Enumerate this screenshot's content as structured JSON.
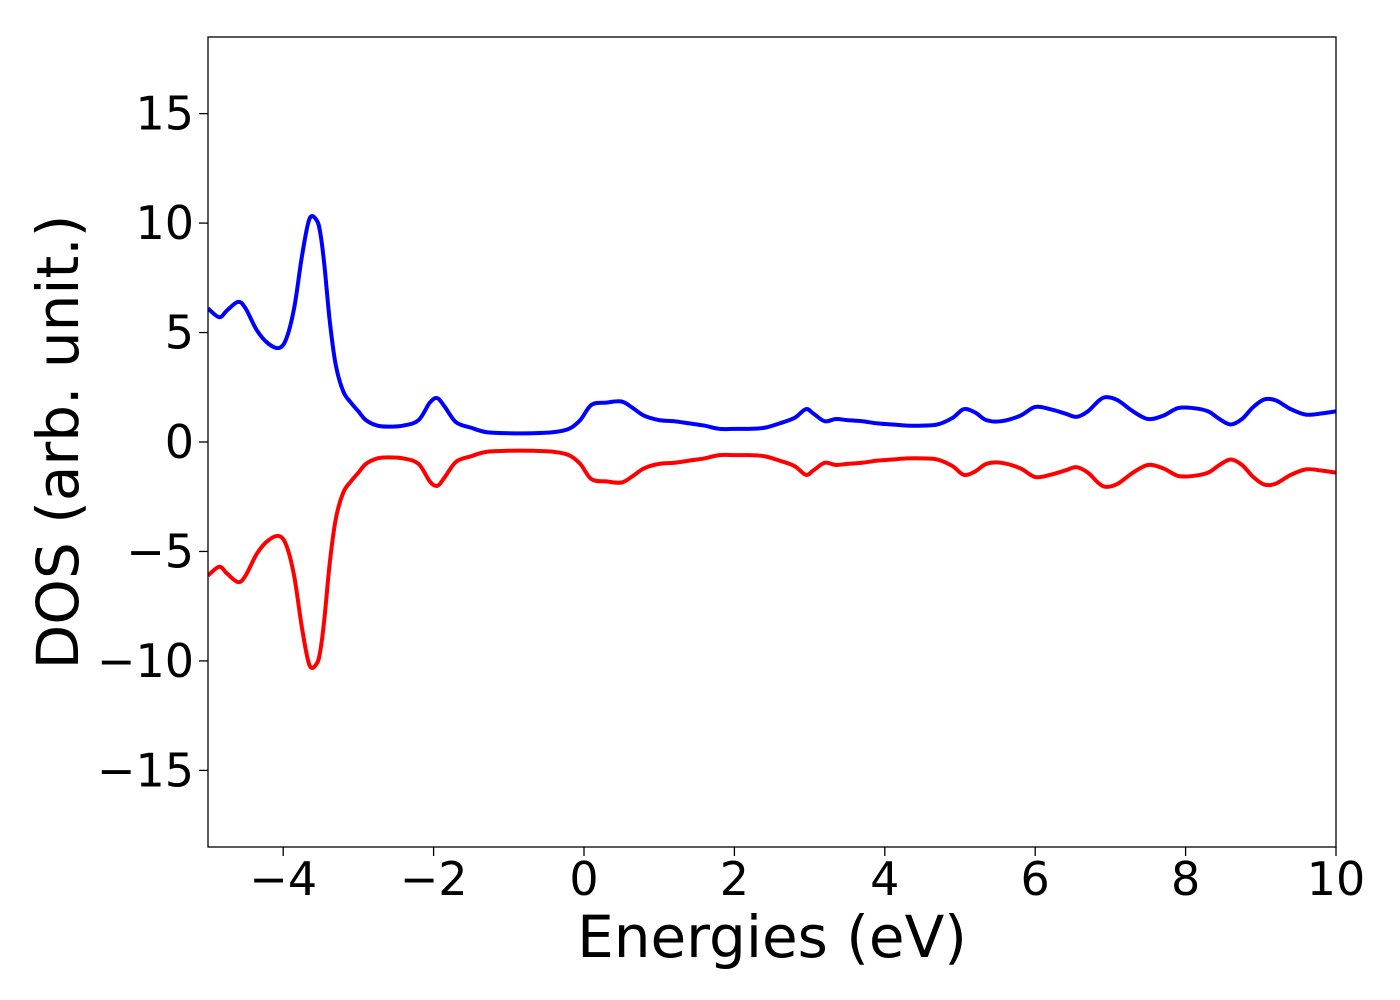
{
  "chart_data": {
    "type": "line",
    "title": "",
    "xlabel": "Energies (eV)",
    "ylabel": "DOS (arb. unit.)",
    "xlim": [
      -5,
      10
    ],
    "ylim": [
      -18.5,
      18.5
    ],
    "xticks": [
      -4,
      -2,
      0,
      2,
      4,
      6,
      8,
      10
    ],
    "yticks": [
      -15,
      -10,
      -5,
      0,
      5,
      10,
      15
    ],
    "xtick_labels": [
      "−4",
      "−2",
      "0",
      "2",
      "4",
      "6",
      "8",
      "10"
    ],
    "ytick_labels": [
      "−15",
      "−10",
      "−5",
      "0",
      "5",
      "10",
      "15"
    ],
    "grid": false,
    "legend": "none",
    "series": [
      {
        "color": "#0000ff",
        "x": [
          -5.0,
          -4.85,
          -4.75,
          -4.6,
          -4.5,
          -4.35,
          -4.2,
          -4.05,
          -3.95,
          -3.85,
          -3.75,
          -3.65,
          -3.55,
          -3.5,
          -3.45,
          -3.38,
          -3.3,
          -3.2,
          -3.1,
          -3.0,
          -2.9,
          -2.75,
          -2.6,
          -2.4,
          -2.2,
          -2.05,
          -1.95,
          -1.85,
          -1.7,
          -1.5,
          -1.3,
          -1.0,
          -0.7,
          -0.4,
          -0.2,
          -0.05,
          0.1,
          0.3,
          0.5,
          0.65,
          0.8,
          1.0,
          1.2,
          1.4,
          1.6,
          1.8,
          2.0,
          2.2,
          2.4,
          2.6,
          2.8,
          2.95,
          3.05,
          3.2,
          3.35,
          3.5,
          3.7,
          3.9,
          4.1,
          4.3,
          4.5,
          4.7,
          4.9,
          5.05,
          5.2,
          5.35,
          5.55,
          5.8,
          6.0,
          6.2,
          6.4,
          6.55,
          6.7,
          6.85,
          6.95,
          7.1,
          7.3,
          7.5,
          7.7,
          7.9,
          8.1,
          8.3,
          8.45,
          8.6,
          8.75,
          8.9,
          9.05,
          9.2,
          9.4,
          9.6,
          9.8,
          10.0
        ],
        "values": [
          6.1,
          5.7,
          6.0,
          6.4,
          6.1,
          5.1,
          4.5,
          4.3,
          4.8,
          6.2,
          8.5,
          10.2,
          10.1,
          9.4,
          8.0,
          5.5,
          3.5,
          2.3,
          1.8,
          1.4,
          1.0,
          0.75,
          0.7,
          0.75,
          1.0,
          1.8,
          2.0,
          1.6,
          0.9,
          0.65,
          0.45,
          0.4,
          0.4,
          0.45,
          0.6,
          1.0,
          1.7,
          1.8,
          1.85,
          1.55,
          1.2,
          1.0,
          0.95,
          0.85,
          0.75,
          0.6,
          0.6,
          0.6,
          0.65,
          0.85,
          1.1,
          1.5,
          1.3,
          0.95,
          1.05,
          1.0,
          0.95,
          0.85,
          0.8,
          0.75,
          0.75,
          0.8,
          1.1,
          1.5,
          1.35,
          1.0,
          0.95,
          1.2,
          1.6,
          1.5,
          1.3,
          1.15,
          1.4,
          1.9,
          2.05,
          1.9,
          1.4,
          1.05,
          1.2,
          1.55,
          1.55,
          1.4,
          1.05,
          0.8,
          1.05,
          1.6,
          1.95,
          1.9,
          1.5,
          1.25,
          1.3,
          1.4
        ]
      },
      {
        "color": "#ff0000",
        "x": [
          -5.0,
          -4.85,
          -4.75,
          -4.6,
          -4.5,
          -4.35,
          -4.2,
          -4.05,
          -3.95,
          -3.85,
          -3.75,
          -3.65,
          -3.55,
          -3.5,
          -3.45,
          -3.38,
          -3.3,
          -3.2,
          -3.1,
          -3.0,
          -2.9,
          -2.75,
          -2.6,
          -2.4,
          -2.2,
          -2.05,
          -1.95,
          -1.85,
          -1.7,
          -1.5,
          -1.3,
          -1.0,
          -0.7,
          -0.4,
          -0.2,
          -0.05,
          0.1,
          0.3,
          0.5,
          0.65,
          0.8,
          1.0,
          1.2,
          1.4,
          1.6,
          1.8,
          2.0,
          2.2,
          2.4,
          2.6,
          2.8,
          2.95,
          3.05,
          3.2,
          3.35,
          3.5,
          3.7,
          3.9,
          4.1,
          4.3,
          4.5,
          4.7,
          4.9,
          5.05,
          5.2,
          5.35,
          5.55,
          5.8,
          6.0,
          6.2,
          6.4,
          6.55,
          6.7,
          6.85,
          6.95,
          7.1,
          7.3,
          7.5,
          7.7,
          7.9,
          8.1,
          8.3,
          8.45,
          8.6,
          8.75,
          8.9,
          9.05,
          9.2,
          9.4,
          9.6,
          9.8,
          10.0
        ],
        "values": [
          -6.1,
          -5.7,
          -6.0,
          -6.4,
          -6.1,
          -5.1,
          -4.5,
          -4.3,
          -4.8,
          -6.2,
          -8.5,
          -10.2,
          -10.1,
          -9.4,
          -8.0,
          -5.5,
          -3.5,
          -2.3,
          -1.8,
          -1.4,
          -1.0,
          -0.75,
          -0.7,
          -0.75,
          -1.0,
          -1.8,
          -2.0,
          -1.6,
          -0.9,
          -0.65,
          -0.45,
          -0.4,
          -0.4,
          -0.45,
          -0.6,
          -1.0,
          -1.7,
          -1.8,
          -1.85,
          -1.55,
          -1.2,
          -1.0,
          -0.95,
          -0.85,
          -0.75,
          -0.6,
          -0.6,
          -0.6,
          -0.65,
          -0.85,
          -1.1,
          -1.5,
          -1.3,
          -0.95,
          -1.05,
          -1.0,
          -0.95,
          -0.85,
          -0.8,
          -0.75,
          -0.75,
          -0.8,
          -1.1,
          -1.5,
          -1.35,
          -1.0,
          -0.95,
          -1.2,
          -1.6,
          -1.5,
          -1.3,
          -1.15,
          -1.4,
          -1.9,
          -2.05,
          -1.9,
          -1.4,
          -1.05,
          -1.2,
          -1.55,
          -1.55,
          -1.4,
          -1.05,
          -0.8,
          -1.05,
          -1.6,
          -1.95,
          -1.9,
          -1.5,
          -1.25,
          -1.3,
          -1.4
        ]
      }
    ]
  }
}
